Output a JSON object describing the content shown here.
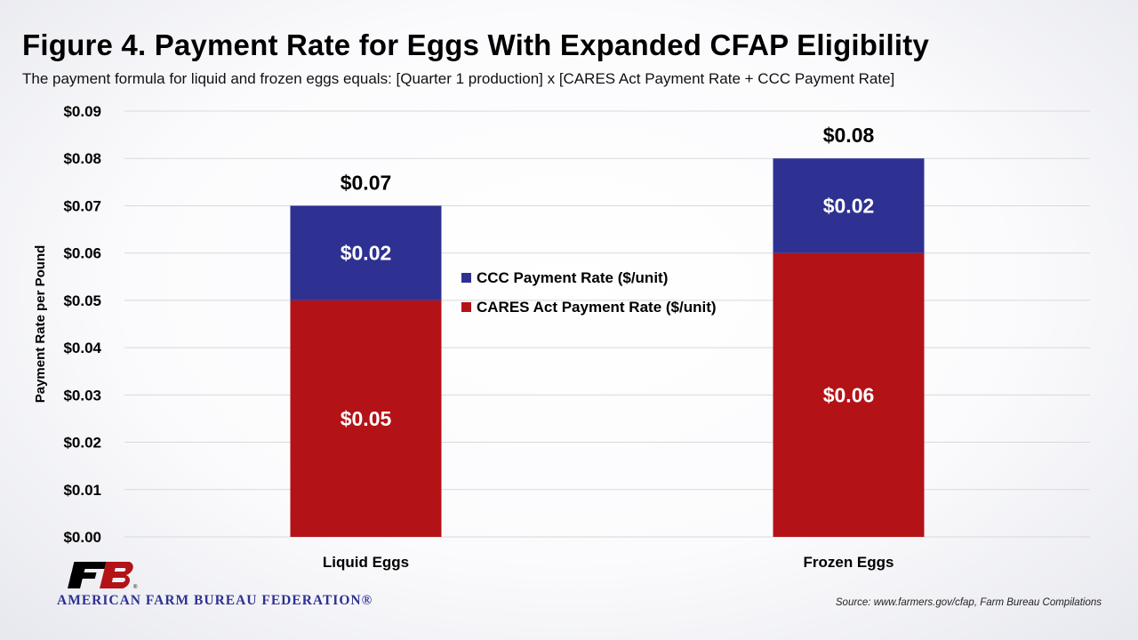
{
  "title": "Figure 4. Payment Rate for Eggs With Expanded CFAP Eligibility",
  "subtitle": "The payment formula for liquid and frozen eggs equals: [Quarter 1 production] x [CARES Act Payment Rate + CCC Payment Rate]",
  "source": "Source: www.farmers.gov/cfap, Farm Bureau Compilations",
  "logo": {
    "text": "AMERICAN FARM BUREAU FEDERATION®",
    "color": "#2e3192",
    "icon": "fb-logo-icon"
  },
  "chart_data": {
    "type": "bar",
    "stacked": true,
    "categories": [
      "Liquid Eggs",
      "Frozen Eggs"
    ],
    "series": [
      {
        "name": "CARES Act Payment Rate ($/unit)",
        "values": [
          0.05,
          0.06
        ],
        "labels": [
          "$0.05",
          "$0.06"
        ],
        "color": "#b31217"
      },
      {
        "name": "CCC Payment Rate ($/unit)",
        "values": [
          0.02,
          0.02
        ],
        "labels": [
          "$0.02",
          "$0.02"
        ],
        "color": "#2e3192"
      }
    ],
    "totals": [
      "$0.07",
      "$0.08"
    ],
    "ylabel": "Payment Rate per Pound",
    "xlabel": "",
    "ylim": [
      0,
      0.09
    ],
    "yticks": [
      "$0.00",
      "$0.01",
      "$0.02",
      "$0.03",
      "$0.04",
      "$0.05",
      "$0.06",
      "$0.07",
      "$0.08",
      "$0.09"
    ],
    "grid": true,
    "legend_position": "center",
    "legend_order": [
      "CCC Payment Rate ($/unit)",
      "CARES Act Payment Rate ($/unit)"
    ]
  }
}
